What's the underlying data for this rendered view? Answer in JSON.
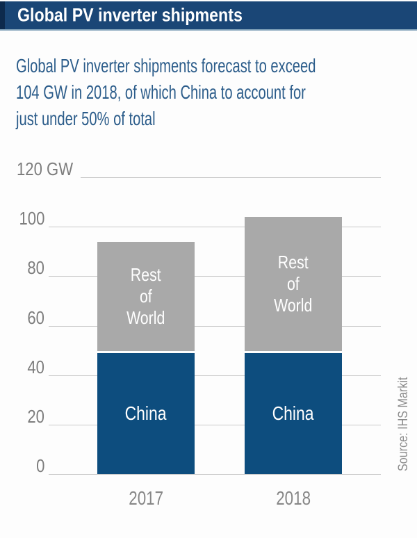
{
  "header": {
    "title": "Global PV inverter shipments"
  },
  "subtitle": {
    "line1": "Global PV inverter shipments forecast to exceed",
    "line2": "104 GW in 2018, of which China to account for",
    "line3": "just under 50% of total"
  },
  "source_label": "Source: IHS Markit",
  "colors": {
    "header_bg": "#1a4676",
    "header_accent_stripe": "#0d2a4d",
    "header_title_text": "#ffffff",
    "subtitle_text": "#2b5c8a",
    "china_bar": "#0d4d7e",
    "rest_of_world_bar": "#a9a9a9",
    "bar_label_text": "#ffffff",
    "gridline": "#c9c9c9",
    "tick_text": "#7d7d7d",
    "year_text": "#878787",
    "source_text": "#8c8c8c"
  },
  "chart_data": {
    "type": "bar",
    "stacked": true,
    "title": "Global PV inverter shipments",
    "unit": "GW",
    "categories": [
      "2017",
      "2018"
    ],
    "series": [
      {
        "name": "China",
        "values": [
          49,
          49
        ],
        "color": "#0d4d7e",
        "label_lines": [
          "China"
        ]
      },
      {
        "name": "Rest of World",
        "values": [
          45,
          55
        ],
        "color": "#a9a9a9",
        "label_lines": [
          "Rest",
          "of",
          "World"
        ]
      }
    ],
    "totals": [
      94,
      104
    ],
    "y_ticks": [
      0,
      20,
      40,
      60,
      80,
      100,
      120
    ],
    "y_axis_top_label": "120 GW",
    "ylim": [
      0,
      120
    ],
    "xlabel": "",
    "ylabel": "GW",
    "grid": true,
    "legend": "labels-inside-bars",
    "source": "Source: IHS Markit"
  }
}
